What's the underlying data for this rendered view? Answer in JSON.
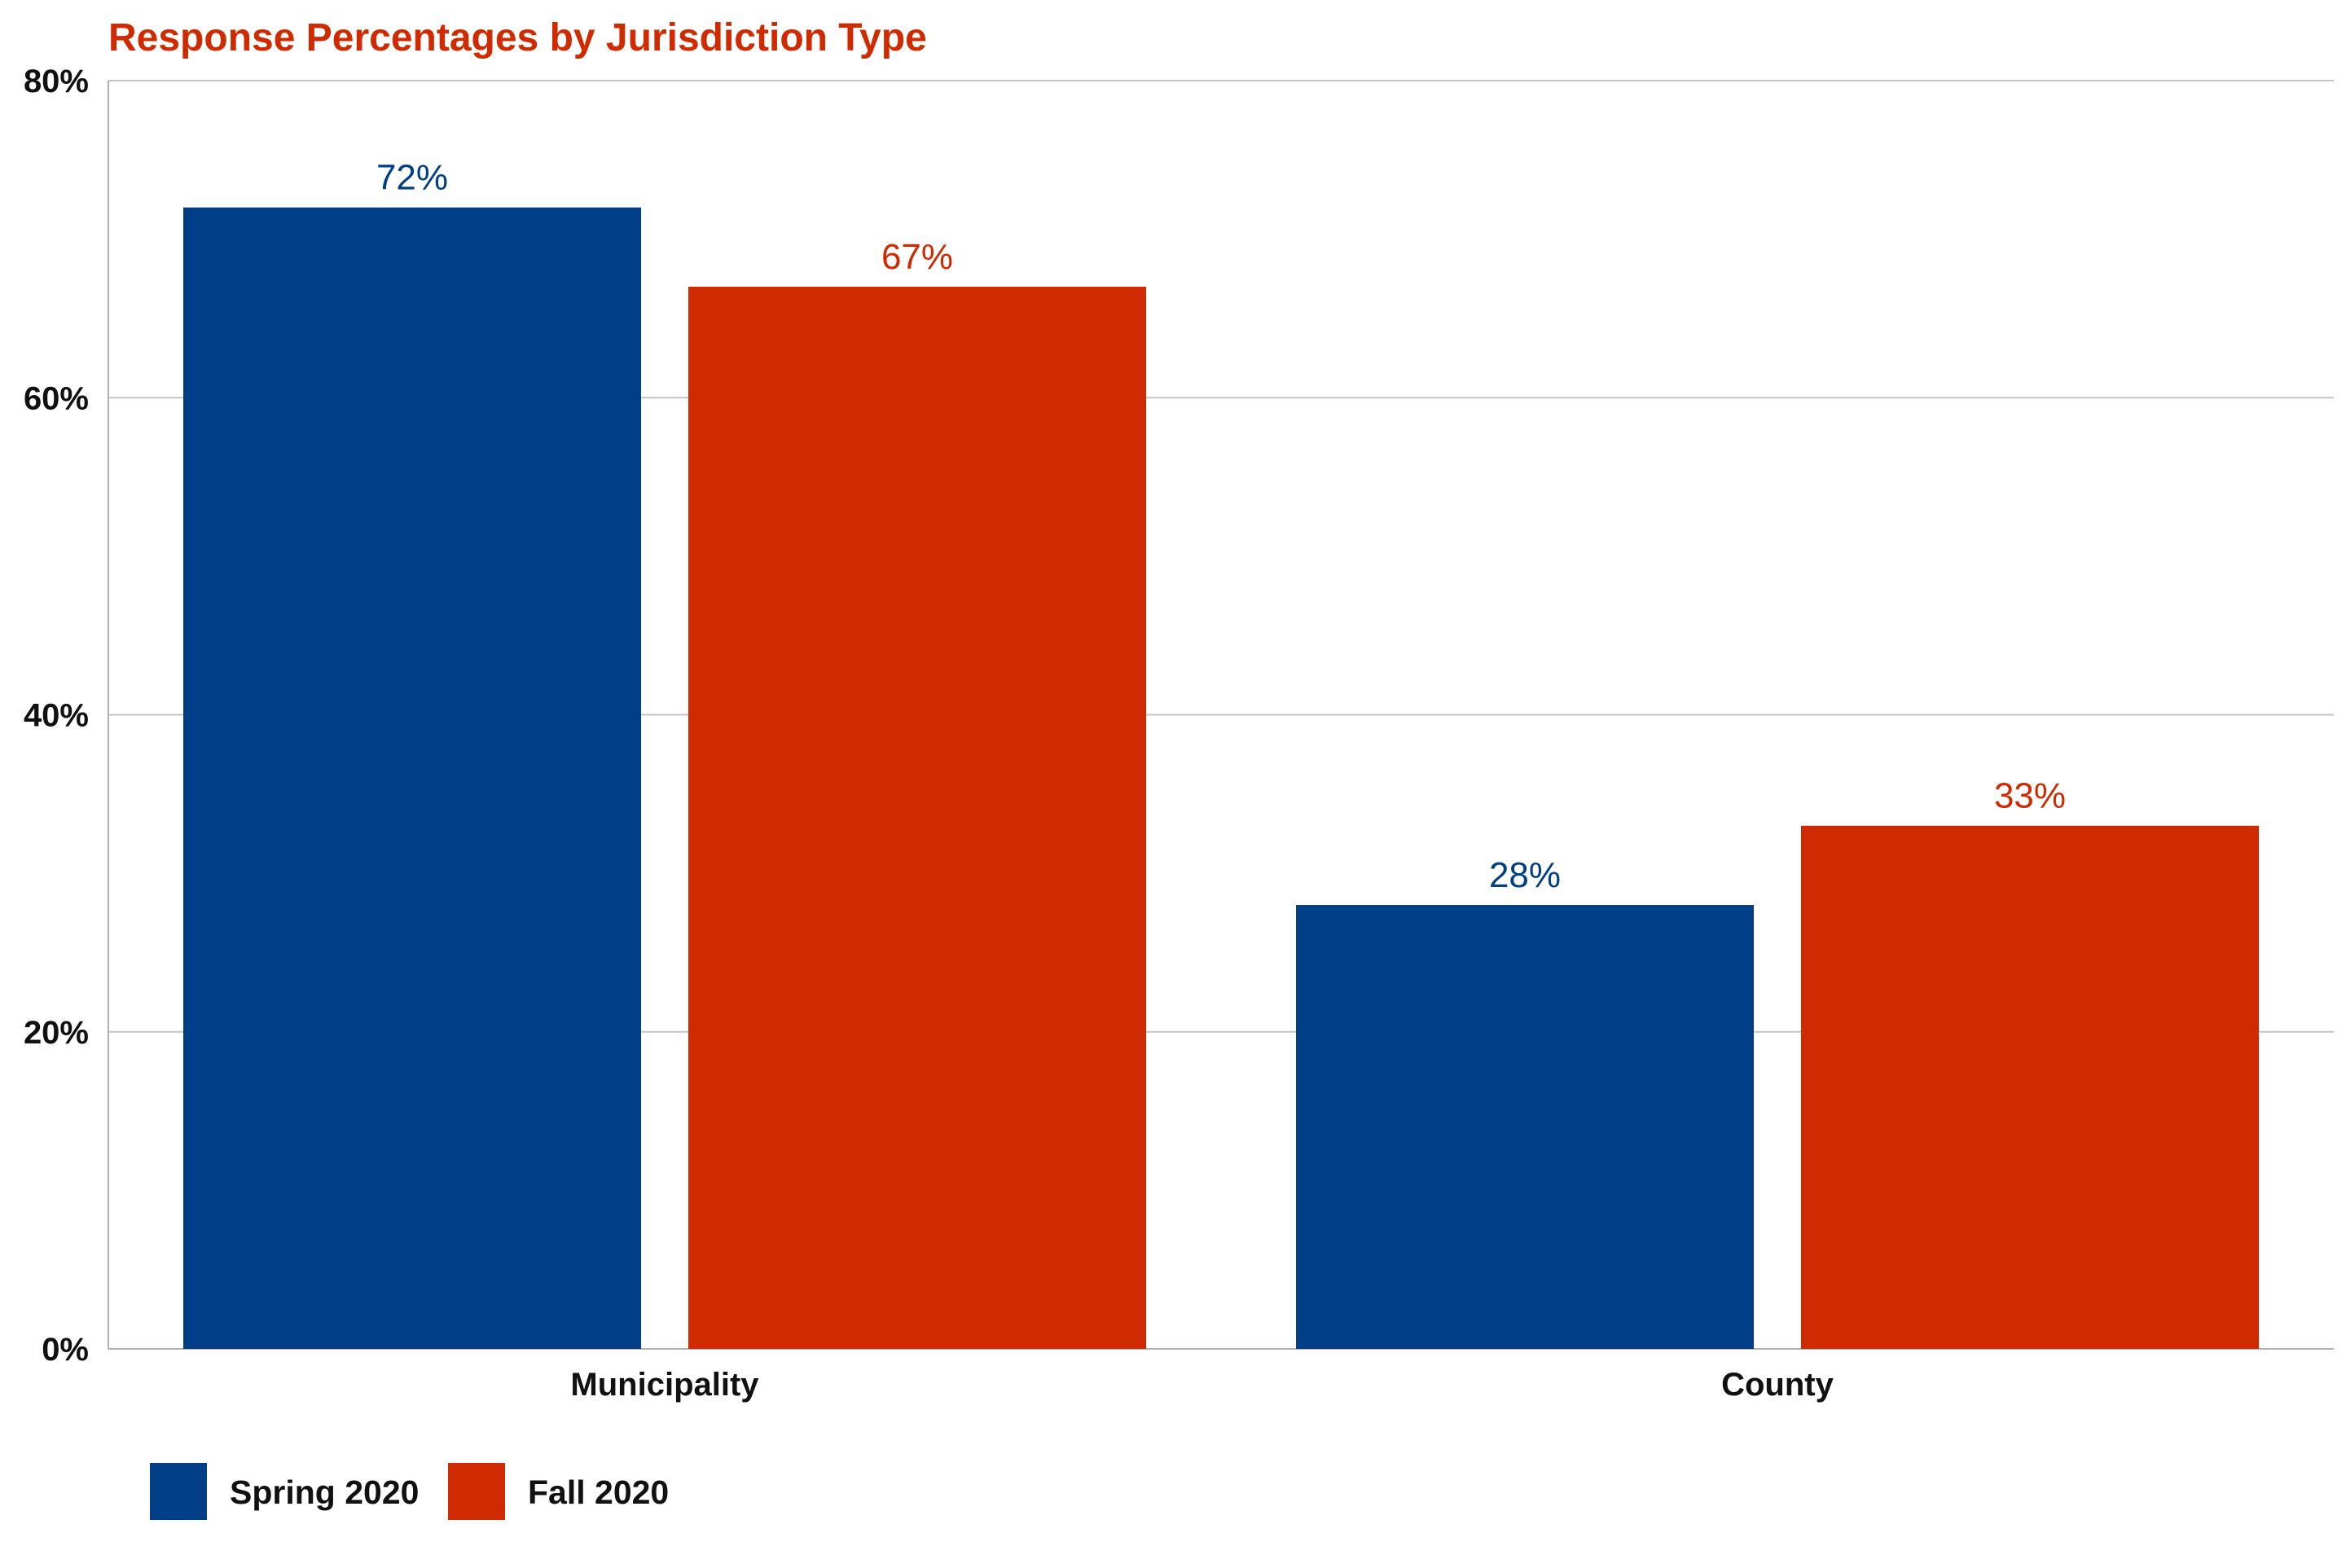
{
  "chart_data": {
    "type": "bar",
    "title": "Response Percentages by Jurisdiction Type",
    "xlabel": "",
    "ylabel": "",
    "categories": [
      "Municipality",
      "County"
    ],
    "series": [
      {
        "name": "Spring 2020",
        "values": [
          72,
          28
        ],
        "labels": [
          "72%",
          "28%"
        ],
        "color": "#003f87"
      },
      {
        "name": "Fall 2020",
        "values": [
          67,
          33
        ],
        "labels": [
          "67%",
          "33%"
        ],
        "color": "#d02b00"
      }
    ],
    "ylim": [
      0,
      80
    ],
    "yticks": [
      0,
      20,
      40,
      60,
      80
    ],
    "ytick_labels": [
      "0%",
      "20%",
      "40%",
      "60%",
      "80%"
    ],
    "grid": true,
    "legend_position": "bottom-left",
    "title_color": "#d02b00"
  }
}
